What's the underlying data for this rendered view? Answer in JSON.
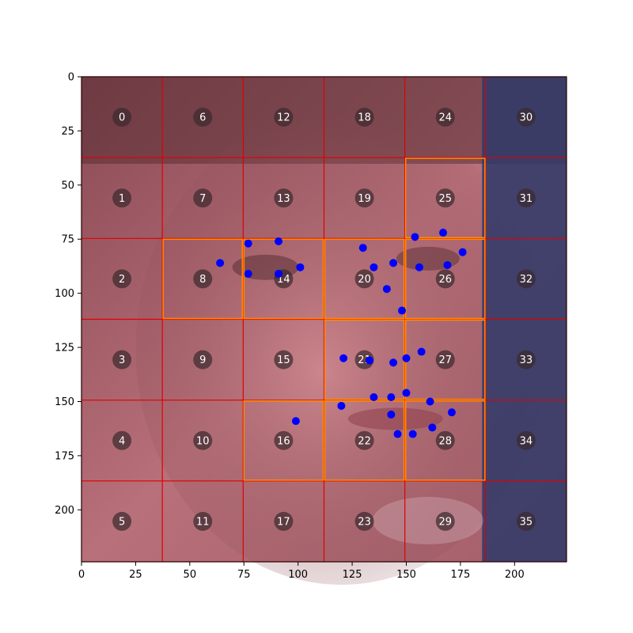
{
  "chart_data": {
    "type": "scatter",
    "title": "",
    "xlabel": "",
    "ylabel": "",
    "xlim": [
      0,
      224
    ],
    "ylim": [
      224,
      0
    ],
    "x_ticks": [
      0,
      25,
      50,
      75,
      100,
      125,
      150,
      175,
      200
    ],
    "y_ticks": [
      0,
      25,
      50,
      75,
      100,
      125,
      150,
      175,
      200
    ],
    "background": "face photo (grayscale-warm tones)",
    "grid": {
      "rows": 6,
      "cols": 6,
      "cell_size": 37.33,
      "line_color": "#e00000",
      "highlight_color": "#ff8c00",
      "highlighted_cells": [
        8,
        14,
        20,
        25,
        26,
        21,
        27,
        16,
        22,
        28
      ]
    },
    "cell_labels": [
      {
        "id": "0",
        "col": 0,
        "row": 0
      },
      {
        "id": "1",
        "col": 0,
        "row": 1
      },
      {
        "id": "2",
        "col": 0,
        "row": 2
      },
      {
        "id": "3",
        "col": 0,
        "row": 3
      },
      {
        "id": "4",
        "col": 0,
        "row": 4
      },
      {
        "id": "5",
        "col": 0,
        "row": 5
      },
      {
        "id": "6",
        "col": 1,
        "row": 0
      },
      {
        "id": "7",
        "col": 1,
        "row": 1
      },
      {
        "id": "8",
        "col": 1,
        "row": 2
      },
      {
        "id": "9",
        "col": 1,
        "row": 3
      },
      {
        "id": "10",
        "col": 1,
        "row": 4
      },
      {
        "id": "11",
        "col": 1,
        "row": 5
      },
      {
        "id": "12",
        "col": 2,
        "row": 0
      },
      {
        "id": "13",
        "col": 2,
        "row": 1
      },
      {
        "id": "14",
        "col": 2,
        "row": 2
      },
      {
        "id": "15",
        "col": 2,
        "row": 3
      },
      {
        "id": "16",
        "col": 2,
        "row": 4
      },
      {
        "id": "17",
        "col": 2,
        "row": 5
      },
      {
        "id": "18",
        "col": 3,
        "row": 0
      },
      {
        "id": "19",
        "col": 3,
        "row": 1
      },
      {
        "id": "20",
        "col": 3,
        "row": 2
      },
      {
        "id": "21",
        "col": 3,
        "row": 3
      },
      {
        "id": "22",
        "col": 3,
        "row": 4
      },
      {
        "id": "23",
        "col": 3,
        "row": 5
      },
      {
        "id": "24",
        "col": 4,
        "row": 0
      },
      {
        "id": "25",
        "col": 4,
        "row": 1
      },
      {
        "id": "26",
        "col": 4,
        "row": 2
      },
      {
        "id": "27",
        "col": 4,
        "row": 3
      },
      {
        "id": "28",
        "col": 4,
        "row": 4
      },
      {
        "id": "29",
        "col": 4,
        "row": 5
      },
      {
        "id": "30",
        "col": 5,
        "row": 0
      },
      {
        "id": "31",
        "col": 5,
        "row": 1
      },
      {
        "id": "32",
        "col": 5,
        "row": 2
      },
      {
        "id": "33",
        "col": 5,
        "row": 3
      },
      {
        "id": "34",
        "col": 5,
        "row": 4
      },
      {
        "id": "35",
        "col": 5,
        "row": 5
      }
    ],
    "point_color": "#0000ff",
    "points": [
      {
        "x": 64,
        "y": 86
      },
      {
        "x": 77,
        "y": 77
      },
      {
        "x": 77,
        "y": 91
      },
      {
        "x": 91,
        "y": 76
      },
      {
        "x": 91,
        "y": 91
      },
      {
        "x": 101,
        "y": 88
      },
      {
        "x": 130,
        "y": 79
      },
      {
        "x": 135,
        "y": 88
      },
      {
        "x": 144,
        "y": 86
      },
      {
        "x": 141,
        "y": 98
      },
      {
        "x": 154,
        "y": 74
      },
      {
        "x": 156,
        "y": 88
      },
      {
        "x": 167,
        "y": 72
      },
      {
        "x": 169,
        "y": 87
      },
      {
        "x": 176,
        "y": 81
      },
      {
        "x": 148,
        "y": 108
      },
      {
        "x": 121,
        "y": 130
      },
      {
        "x": 133,
        "y": 131
      },
      {
        "x": 144,
        "y": 132
      },
      {
        "x": 150,
        "y": 130
      },
      {
        "x": 157,
        "y": 127
      },
      {
        "x": 99,
        "y": 159
      },
      {
        "x": 120,
        "y": 152
      },
      {
        "x": 135,
        "y": 148
      },
      {
        "x": 143,
        "y": 148
      },
      {
        "x": 150,
        "y": 146
      },
      {
        "x": 161,
        "y": 150
      },
      {
        "x": 171,
        "y": 155
      },
      {
        "x": 143,
        "y": 156
      },
      {
        "x": 146,
        "y": 165
      },
      {
        "x": 153,
        "y": 165
      },
      {
        "x": 162,
        "y": 162
      }
    ]
  }
}
